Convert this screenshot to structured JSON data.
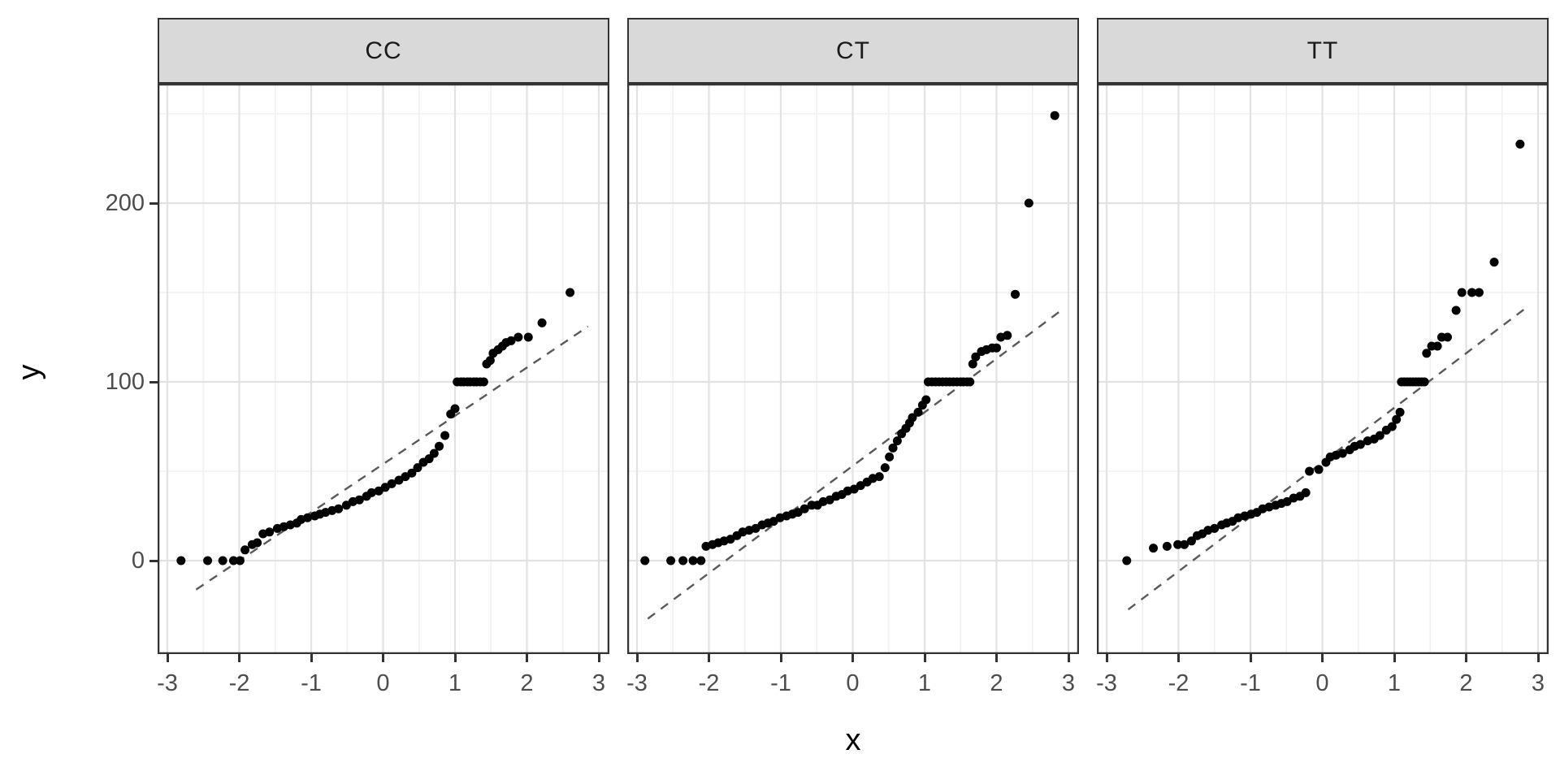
{
  "chart_data": {
    "type": "scatter",
    "subtype": "faceted-qq-plot",
    "title": "",
    "xlabel": "x",
    "ylabel": "y",
    "x_ticks": [
      -3,
      -2,
      -1,
      0,
      1,
      2,
      3
    ],
    "y_ticks": [
      0,
      100,
      200
    ],
    "x_minor_ticks": [
      -2.5,
      -1.5,
      -0.5,
      0.5,
      1.5,
      2.5
    ],
    "y_minor_ticks": [
      50,
      150,
      250
    ],
    "xlim": [
      -3.15,
      3.15
    ],
    "ylim": [
      -52,
      265
    ],
    "grid": "major+minor",
    "legend": "none",
    "facets": [
      {
        "label": "CC",
        "ref_line": {
          "slope": 27,
          "intercept": 54,
          "x_start": -2.6,
          "x_end": 2.85,
          "style": "dashed"
        },
        "points": [
          [
            -2.81,
            0
          ],
          [
            -2.44,
            0
          ],
          [
            -2.23,
            0
          ],
          [
            -2.08,
            0
          ],
          [
            -1.99,
            0
          ],
          [
            -1.92,
            6
          ],
          [
            -1.82,
            9
          ],
          [
            -1.75,
            10
          ],
          [
            -1.67,
            15
          ],
          [
            -1.58,
            16
          ],
          [
            -1.47,
            18
          ],
          [
            -1.38,
            19
          ],
          [
            -1.29,
            20
          ],
          [
            -1.2,
            21
          ],
          [
            -1.14,
            23
          ],
          [
            -1.05,
            24
          ],
          [
            -0.95,
            25
          ],
          [
            -0.88,
            26
          ],
          [
            -0.8,
            27
          ],
          [
            -0.71,
            28
          ],
          [
            -0.62,
            29
          ],
          [
            -0.51,
            31
          ],
          [
            -0.42,
            33
          ],
          [
            -0.33,
            34
          ],
          [
            -0.23,
            36
          ],
          [
            -0.16,
            38
          ],
          [
            -0.06,
            39
          ],
          [
            0.03,
            41
          ],
          [
            0.12,
            43
          ],
          [
            0.22,
            45
          ],
          [
            0.31,
            47
          ],
          [
            0.4,
            49
          ],
          [
            0.48,
            52
          ],
          [
            0.56,
            55
          ],
          [
            0.64,
            57
          ],
          [
            0.71,
            60
          ],
          [
            0.78,
            64
          ],
          [
            0.86,
            70
          ],
          [
            0.94,
            82
          ],
          [
            1.0,
            85
          ],
          [
            1.03,
            100
          ],
          [
            1.08,
            100
          ],
          [
            1.12,
            100
          ],
          [
            1.17,
            100
          ],
          [
            1.21,
            100
          ],
          [
            1.26,
            100
          ],
          [
            1.3,
            100
          ],
          [
            1.35,
            100
          ],
          [
            1.4,
            100
          ],
          [
            1.44,
            110
          ],
          [
            1.49,
            112
          ],
          [
            1.53,
            116
          ],
          [
            1.6,
            118
          ],
          [
            1.66,
            120
          ],
          [
            1.71,
            122
          ],
          [
            1.78,
            123
          ],
          [
            1.88,
            125
          ],
          [
            2.02,
            125
          ],
          [
            2.21,
            133
          ],
          [
            2.6,
            150
          ]
        ]
      },
      {
        "label": "CT",
        "ref_line": {
          "slope": 30,
          "intercept": 53,
          "x_start": -2.85,
          "x_end": 2.9,
          "style": "dashed"
        },
        "points": [
          [
            -2.89,
            0
          ],
          [
            -2.53,
            0
          ],
          [
            -2.36,
            0
          ],
          [
            -2.22,
            0
          ],
          [
            -2.11,
            0
          ],
          [
            -2.04,
            8
          ],
          [
            -1.95,
            9
          ],
          [
            -1.87,
            10
          ],
          [
            -1.79,
            11
          ],
          [
            -1.7,
            12
          ],
          [
            -1.61,
            14
          ],
          [
            -1.53,
            16
          ],
          [
            -1.44,
            17
          ],
          [
            -1.35,
            18
          ],
          [
            -1.26,
            20
          ],
          [
            -1.18,
            21
          ],
          [
            -1.1,
            22
          ],
          [
            -1.01,
            24
          ],
          [
            -0.92,
            25
          ],
          [
            -0.84,
            26
          ],
          [
            -0.76,
            27
          ],
          [
            -0.67,
            29
          ],
          [
            -0.57,
            31
          ],
          [
            -0.49,
            31
          ],
          [
            -0.41,
            33
          ],
          [
            -0.32,
            34
          ],
          [
            -0.23,
            36
          ],
          [
            -0.15,
            37
          ],
          [
            -0.07,
            39
          ],
          [
            0.02,
            40
          ],
          [
            0.11,
            42
          ],
          [
            0.2,
            44
          ],
          [
            0.28,
            46
          ],
          [
            0.37,
            47
          ],
          [
            0.45,
            52
          ],
          [
            0.51,
            58
          ],
          [
            0.56,
            63
          ],
          [
            0.62,
            67
          ],
          [
            0.68,
            71
          ],
          [
            0.74,
            74
          ],
          [
            0.79,
            77
          ],
          [
            0.83,
            80
          ],
          [
            0.91,
            83
          ],
          [
            0.97,
            87
          ],
          [
            1.02,
            90
          ],
          [
            1.05,
            100
          ],
          [
            1.1,
            100
          ],
          [
            1.15,
            100
          ],
          [
            1.2,
            100
          ],
          [
            1.25,
            100
          ],
          [
            1.3,
            100
          ],
          [
            1.35,
            100
          ],
          [
            1.4,
            100
          ],
          [
            1.45,
            100
          ],
          [
            1.5,
            100
          ],
          [
            1.54,
            100
          ],
          [
            1.59,
            100
          ],
          [
            1.63,
            100
          ],
          [
            1.67,
            110
          ],
          [
            1.71,
            114
          ],
          [
            1.79,
            117
          ],
          [
            1.86,
            118
          ],
          [
            1.94,
            119
          ],
          [
            2.0,
            119
          ],
          [
            2.06,
            125
          ],
          [
            2.15,
            126
          ],
          [
            2.26,
            149
          ],
          [
            2.45,
            200
          ],
          [
            2.81,
            249
          ]
        ]
      },
      {
        "label": "TT",
        "ref_line": {
          "slope": 30.5,
          "intercept": 55,
          "x_start": -2.7,
          "x_end": 2.8,
          "style": "dashed"
        },
        "points": [
          [
            -2.72,
            0
          ],
          [
            -2.35,
            7
          ],
          [
            -2.16,
            8
          ],
          [
            -2.01,
            9
          ],
          [
            -1.92,
            9
          ],
          [
            -1.82,
            11
          ],
          [
            -1.74,
            14
          ],
          [
            -1.67,
            15
          ],
          [
            -1.59,
            17
          ],
          [
            -1.5,
            18
          ],
          [
            -1.4,
            20
          ],
          [
            -1.33,
            21
          ],
          [
            -1.25,
            22
          ],
          [
            -1.17,
            24
          ],
          [
            -1.08,
            25
          ],
          [
            -0.99,
            26
          ],
          [
            -0.91,
            27
          ],
          [
            -0.83,
            29
          ],
          [
            -0.74,
            30
          ],
          [
            -0.65,
            31
          ],
          [
            -0.57,
            32
          ],
          [
            -0.49,
            33
          ],
          [
            -0.4,
            35
          ],
          [
            -0.31,
            36
          ],
          [
            -0.23,
            38
          ],
          [
            -0.18,
            50
          ],
          [
            -0.05,
            51
          ],
          [
            0.05,
            55
          ],
          [
            0.11,
            58
          ],
          [
            0.19,
            59
          ],
          [
            0.28,
            60
          ],
          [
            0.38,
            62
          ],
          [
            0.45,
            64
          ],
          [
            0.53,
            65
          ],
          [
            0.63,
            67
          ],
          [
            0.72,
            68
          ],
          [
            0.8,
            70
          ],
          [
            0.89,
            73
          ],
          [
            0.97,
            75
          ],
          [
            1.03,
            79
          ],
          [
            1.08,
            83
          ],
          [
            1.1,
            100
          ],
          [
            1.14,
            100
          ],
          [
            1.18,
            100
          ],
          [
            1.22,
            100
          ],
          [
            1.26,
            100
          ],
          [
            1.3,
            100
          ],
          [
            1.34,
            100
          ],
          [
            1.38,
            100
          ],
          [
            1.42,
            100
          ],
          [
            1.45,
            116
          ],
          [
            1.52,
            120
          ],
          [
            1.6,
            120
          ],
          [
            1.66,
            125
          ],
          [
            1.74,
            125
          ],
          [
            1.86,
            140
          ],
          [
            1.94,
            150
          ],
          [
            2.08,
            150
          ],
          [
            2.18,
            150
          ],
          [
            2.39,
            167
          ],
          [
            2.75,
            233
          ]
        ]
      }
    ]
  },
  "style": {
    "strip_bg": "#d9d9d9",
    "strip_border": "#333333",
    "panel_border": "#333333",
    "panel_bg": "#ffffff",
    "grid_major": "#e2e2e2",
    "grid_minor": "#f0f0f0",
    "point_color": "#000000",
    "ref_line_color": "#595959",
    "tick_color": "#333333",
    "tick_label_color": "#4d4d4d",
    "axis_title_color": "#000000"
  }
}
